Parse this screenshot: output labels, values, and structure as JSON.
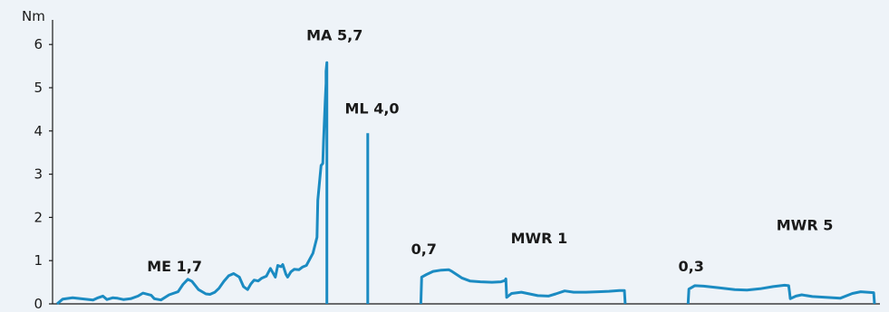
{
  "chart_data": {
    "type": "line",
    "y_unit_label": "Nm",
    "ylim": [
      0,
      6.5
    ],
    "y_ticks": [
      0,
      1,
      2,
      3,
      4,
      5,
      6
    ],
    "xlim": [
      0,
      100
    ],
    "grid": false,
    "colors": {
      "line": "#1b8bc2",
      "axis": "#1a1a1a",
      "background": "#eef3f8"
    },
    "series": [
      {
        "values_x": [
          0.0,
          0.7,
          1.9,
          4.4,
          5.0,
          5.6,
          6.1,
          6.8,
          7.4,
          8.1,
          9.0,
          9.9,
          10.5,
          11.5,
          11.9,
          12.7,
          13.7,
          14.8,
          15.4,
          16.0,
          16.5,
          17.3,
          18.2,
          18.7,
          19.3,
          19.8,
          20.4,
          21.0,
          21.6,
          22.3,
          22.8,
          23.3,
          23.7,
          24.1,
          24.6,
          25.0,
          25.6,
          26.1,
          26.7,
          27.0,
          27.4,
          27.6,
          28.0,
          28.2,
          28.6,
          29.0,
          29.6,
          30.0,
          30.5,
          31.3,
          31.8,
          31.9,
          32.3,
          32.5,
          32.6,
          32.8,
          32.9,
          32.9,
          33.0,
          33.0
        ],
        "values_y": [
          0.0,
          0.11,
          0.14,
          0.09,
          0.14,
          0.18,
          0.1,
          0.14,
          0.13,
          0.1,
          0.12,
          0.18,
          0.25,
          0.2,
          0.12,
          0.09,
          0.21,
          0.28,
          0.45,
          0.57,
          0.52,
          0.33,
          0.23,
          0.22,
          0.27,
          0.36,
          0.52,
          0.65,
          0.7,
          0.62,
          0.4,
          0.33,
          0.46,
          0.55,
          0.53,
          0.59,
          0.64,
          0.82,
          0.62,
          0.89,
          0.86,
          0.91,
          0.68,
          0.62,
          0.74,
          0.8,
          0.79,
          0.85,
          0.89,
          1.17,
          1.54,
          2.4,
          3.2,
          3.25,
          3.8,
          4.7,
          5.1,
          5.38,
          5.58,
          0.0
        ]
      },
      {
        "values_x": [
          38.0,
          38.0
        ],
        "values_y": [
          0.0,
          3.95
        ]
      },
      {
        "values_x": [
          44.5,
          44.6,
          45.2,
          46.0,
          47.0,
          47.9,
          48.3,
          49.5,
          50.5,
          51.8,
          53.2,
          54.3,
          54.8,
          54.9,
          55.0,
          55.6,
          56.8,
          57.8,
          58.8,
          60.1,
          61.0,
          62.1,
          63.2,
          64.7,
          66.2,
          67.5,
          68.8,
          69.4,
          69.5
        ],
        "values_y": [
          0.0,
          0.62,
          0.68,
          0.75,
          0.78,
          0.79,
          0.75,
          0.6,
          0.53,
          0.51,
          0.5,
          0.51,
          0.54,
          0.58,
          0.15,
          0.24,
          0.27,
          0.23,
          0.19,
          0.18,
          0.23,
          0.3,
          0.27,
          0.27,
          0.28,
          0.29,
          0.31,
          0.31,
          0.0
        ]
      },
      {
        "values_x": [
          77.2,
          77.3,
          78.0,
          79.1,
          81.0,
          82.9,
          84.4,
          86.0,
          87.6,
          89.0,
          89.5,
          89.6,
          89.7,
          90.4,
          91.1,
          92.4,
          94.0,
          95.8,
          97.3,
          98.3,
          99.9,
          100.0
        ],
        "values_y": [
          0.0,
          0.34,
          0.42,
          0.41,
          0.37,
          0.33,
          0.32,
          0.35,
          0.4,
          0.43,
          0.42,
          0.28,
          0.12,
          0.18,
          0.21,
          0.17,
          0.15,
          0.13,
          0.24,
          0.28,
          0.26,
          0.0
        ]
      }
    ],
    "annotations": [
      {
        "text": "ME 1,7",
        "x": 11.0,
        "y": 0.75
      },
      {
        "text": "MA 5,7",
        "x": 30.5,
        "y": 6.1
      },
      {
        "text": "ML 4,0",
        "x": 35.2,
        "y": 4.4
      },
      {
        "text": "0,7",
        "x": 43.3,
        "y": 1.15
      },
      {
        "text": "MWR 1",
        "x": 55.5,
        "y": 1.4
      },
      {
        "text": "0,3",
        "x": 76.0,
        "y": 0.75
      },
      {
        "text": "MWR 5",
        "x": 88.0,
        "y": 1.7
      }
    ]
  }
}
